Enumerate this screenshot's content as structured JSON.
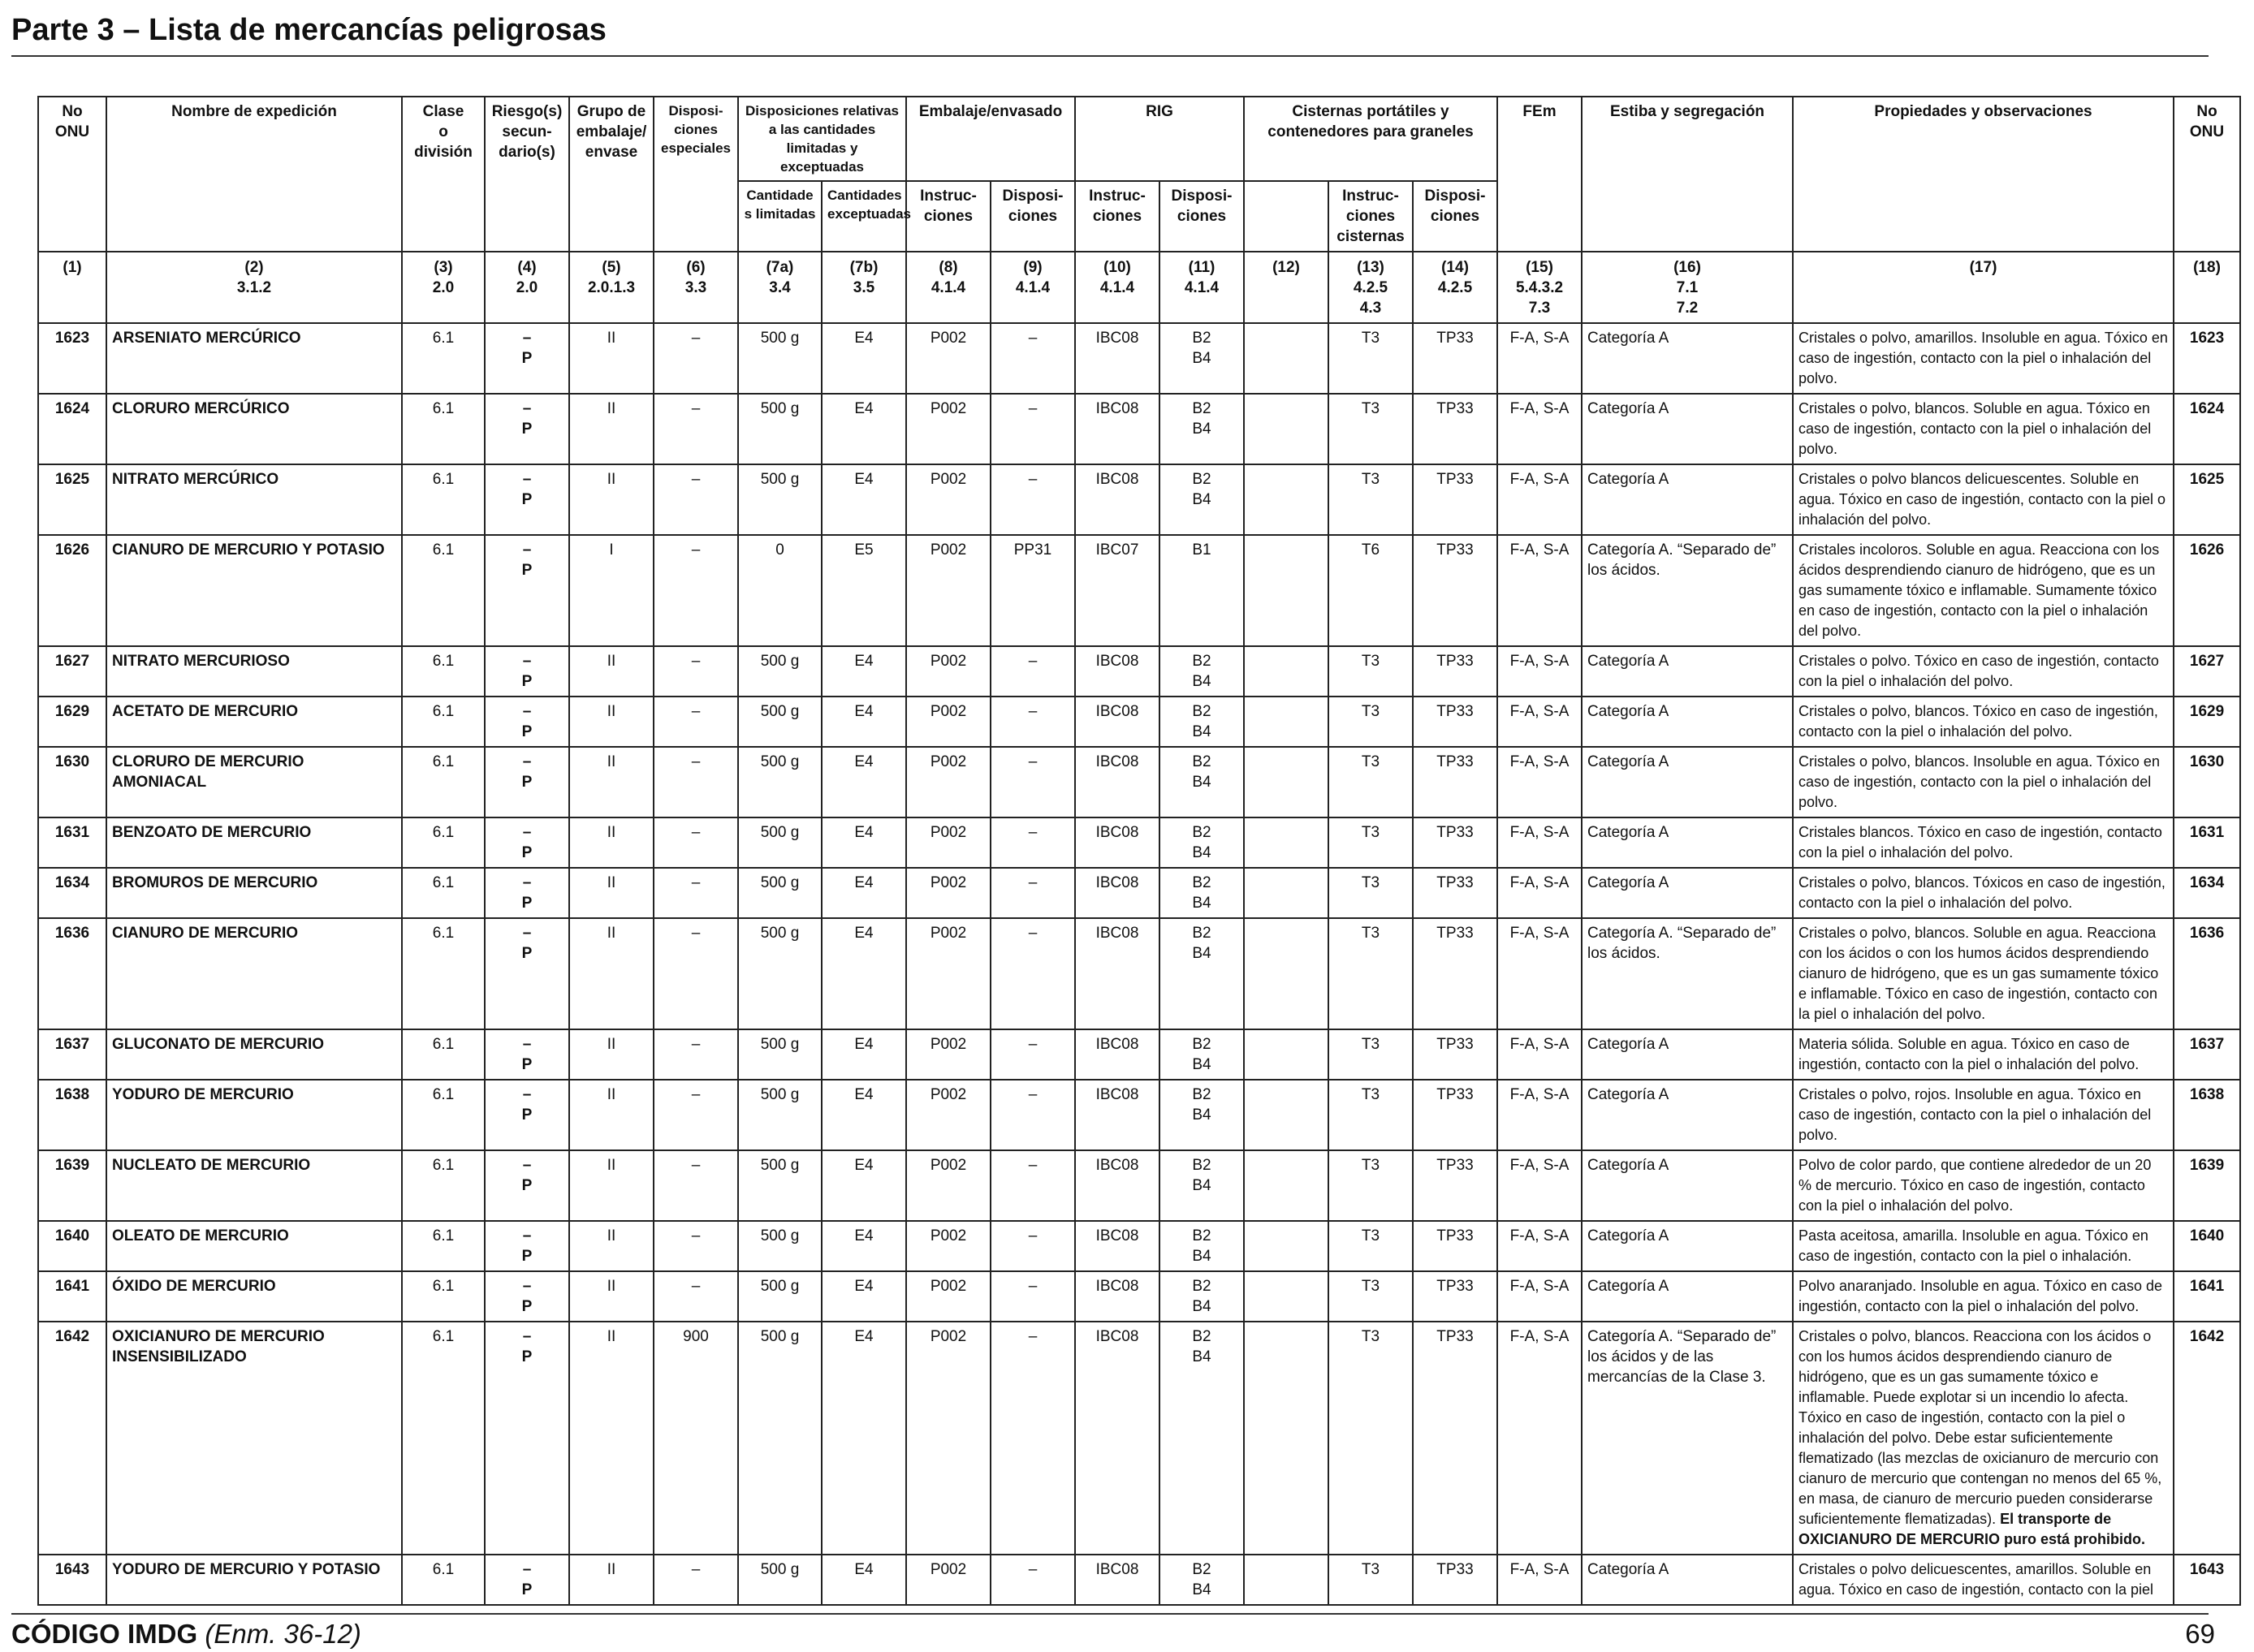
{
  "header": {
    "title": "Parte 3 – Lista de mercancías peligrosas"
  },
  "columns": {
    "c1": "No\nONU",
    "c2": "Nombre de expedición",
    "c3": "Clase\no\ndivisión",
    "c4": "Riesgo(s)\nsecun-\ndario(s)",
    "c5": "Grupo de\nembalaje/\nenvase",
    "c6": "Disposi-\nciones\nespeciales",
    "c7": "Disposiciones relativas\na las cantidades\nlimitadas y exceptuadas",
    "c7a": "Cantidade\ns limitadas",
    "c7b": "Cantidades\nexceptuadas",
    "c8_9": "Embalaje/envasado",
    "c8": "Instruc-\nciones",
    "c9": "Disposi-\nciones",
    "c10_11": "RIG",
    "c10": "Instruc-\nciones",
    "c11": "Disposi-\nciones",
    "c12_14": "Cisternas portátiles y\ncontenedores para graneles",
    "c13": "Instruc-\nciones\ncisternas",
    "c14": "Disposi-\nciones",
    "c15": "FEm",
    "c16": "Estiba y segregación",
    "c17": "Propiedades y observaciones",
    "c18": "No\nONU"
  },
  "column_numbers": [
    "(1)",
    "(2)\n3.1.2",
    "(3)\n2.0",
    "(4)\n2.0",
    "(5)\n2.0.1.3",
    "(6)\n3.3",
    "(7a)\n3.4",
    "(7b)\n3.5",
    "(8)\n4.1.4",
    "(9)\n4.1.4",
    "(10)\n4.1.4",
    "(11)\n4.1.4",
    "(12)",
    "(13)\n4.2.5\n4.3",
    "(14)\n4.2.5",
    "(15)\n5.4.3.2\n7.3",
    "(16)\n7.1\n7.2",
    "(17)",
    "(18)"
  ],
  "rows": [
    {
      "un": "1623",
      "name": "ARSENIATO MERCÚRICO",
      "cls": "6.1",
      "sub": "–\nP",
      "pg": "II",
      "sp": "–",
      "lq": "500 g",
      "eq": "E4",
      "pi": "P002",
      "pp": "–",
      "ibc": "IBC08",
      "ibcp": "B2\nB4",
      "c12": "",
      "tank": "T3",
      "tankp": "TP33",
      "ems": "F-A, S-A",
      "stow": "Categoría A",
      "props": "Cristales o polvo, amarillos. Insoluble en agua. Tóxico en caso de ingestión, contacto con la piel o inhalación del polvo.",
      "un2": "1623"
    },
    {
      "un": "1624",
      "name": "CLORURO MERCÚRICO",
      "cls": "6.1",
      "sub": "–\nP",
      "pg": "II",
      "sp": "–",
      "lq": "500 g",
      "eq": "E4",
      "pi": "P002",
      "pp": "–",
      "ibc": "IBC08",
      "ibcp": "B2\nB4",
      "c12": "",
      "tank": "T3",
      "tankp": "TP33",
      "ems": "F-A, S-A",
      "stow": "Categoría A",
      "props": "Cristales o polvo, blancos. Soluble en agua. Tóxico en caso de ingestión, contacto con la piel o inhalación del polvo.",
      "un2": "1624"
    },
    {
      "un": "1625",
      "name": "NITRATO MERCÚRICO",
      "cls": "6.1",
      "sub": "–\nP",
      "pg": "II",
      "sp": "–",
      "lq": "500 g",
      "eq": "E4",
      "pi": "P002",
      "pp": "–",
      "ibc": "IBC08",
      "ibcp": "B2\nB4",
      "c12": "",
      "tank": "T3",
      "tankp": "TP33",
      "ems": "F-A, S-A",
      "stow": "Categoría A",
      "props": "Cristales o polvo blancos delicuescentes. Soluble en agua. Tóxico en caso de ingestión, contacto con la piel o inhalación del polvo.",
      "un2": "1625"
    },
    {
      "un": "1626",
      "name": "CIANURO DE MERCURIO Y POTASIO",
      "cls": "6.1",
      "sub": "–\nP",
      "pg": "I",
      "sp": "–",
      "lq": "0",
      "eq": "E5",
      "pi": "P002",
      "pp": "PP31",
      "ibc": "IBC07",
      "ibcp": "B1",
      "c12": "",
      "tank": "T6",
      "tankp": "TP33",
      "ems": "F-A, S-A",
      "stow": "Categoría A. “Separado de” los ácidos.",
      "props": "Cristales incoloros. Soluble en agua. Reacciona con los ácidos desprendiendo cianuro de hidrógeno, que es un gas sumamente tóxico e inflamable. Sumamente tóxico en caso de ingestión, contacto con la piel o inhalación del polvo.",
      "un2": "1626"
    },
    {
      "un": "1627",
      "name": "NITRATO MERCURIOSO",
      "cls": "6.1",
      "sub": "–\nP",
      "pg": "II",
      "sp": "–",
      "lq": "500 g",
      "eq": "E4",
      "pi": "P002",
      "pp": "–",
      "ibc": "IBC08",
      "ibcp": "B2\nB4",
      "c12": "",
      "tank": "T3",
      "tankp": "TP33",
      "ems": "F-A, S-A",
      "stow": "Categoría A",
      "props": "Cristales o polvo. Tóxico en caso de ingestión, contacto con la piel o inhalación del polvo.",
      "un2": "1627"
    },
    {
      "un": "1629",
      "name": "ACETATO DE MERCURIO",
      "cls": "6.1",
      "sub": "–\nP",
      "pg": "II",
      "sp": "–",
      "lq": "500 g",
      "eq": "E4",
      "pi": "P002",
      "pp": "–",
      "ibc": "IBC08",
      "ibcp": "B2\nB4",
      "c12": "",
      "tank": "T3",
      "tankp": "TP33",
      "ems": "F-A, S-A",
      "stow": "Categoría A",
      "props": "Cristales o polvo, blancos. Tóxico en caso de ingestión, contacto con la piel o inhalación del polvo.",
      "un2": "1629"
    },
    {
      "un": "1630",
      "name": "CLORURO DE MERCURIO AMONIACAL",
      "cls": "6.1",
      "sub": "–\nP",
      "pg": "II",
      "sp": "–",
      "lq": "500 g",
      "eq": "E4",
      "pi": "P002",
      "pp": "–",
      "ibc": "IBC08",
      "ibcp": "B2\nB4",
      "c12": "",
      "tank": "T3",
      "tankp": "TP33",
      "ems": "F-A, S-A",
      "stow": "Categoría A",
      "props": "Cristales o polvo, blancos. Insoluble en agua. Tóxico en caso de ingestión, contacto con la piel o inhalación del polvo.",
      "un2": "1630"
    },
    {
      "un": "1631",
      "name": "BENZOATO DE MERCURIO",
      "cls": "6.1",
      "sub": "–\nP",
      "pg": "II",
      "sp": "–",
      "lq": "500 g",
      "eq": "E4",
      "pi": "P002",
      "pp": "–",
      "ibc": "IBC08",
      "ibcp": "B2\nB4",
      "c12": "",
      "tank": "T3",
      "tankp": "TP33",
      "ems": "F-A, S-A",
      "stow": "Categoría A",
      "props": "Cristales blancos. Tóxico en caso de ingestión, contacto con la piel o inhalación del polvo.",
      "un2": "1631"
    },
    {
      "un": "1634",
      "name": "BROMUROS DE MERCURIO",
      "cls": "6.1",
      "sub": "–\nP",
      "pg": "II",
      "sp": "–",
      "lq": "500 g",
      "eq": "E4",
      "pi": "P002",
      "pp": "–",
      "ibc": "IBC08",
      "ibcp": "B2\nB4",
      "c12": "",
      "tank": "T3",
      "tankp": "TP33",
      "ems": "F-A, S-A",
      "stow": "Categoría A",
      "props": "Cristales o polvo, blancos. Tóxicos en caso de ingestión, contacto con la piel o inhalación del polvo.",
      "un2": "1634"
    },
    {
      "un": "1636",
      "name": "CIANURO DE MERCURIO",
      "cls": "6.1",
      "sub": "–\nP",
      "pg": "II",
      "sp": "–",
      "lq": "500 g",
      "eq": "E4",
      "pi": "P002",
      "pp": "–",
      "ibc": "IBC08",
      "ibcp": "B2\nB4",
      "c12": "",
      "tank": "T3",
      "tankp": "TP33",
      "ems": "F-A, S-A",
      "stow": "Categoría A. “Separado de” los ácidos.",
      "props": "Cristales o polvo, blancos. Soluble en agua. Reacciona con los ácidos o con los humos ácidos desprendiendo cianuro de hidrógeno, que es un gas sumamente tóxico e inflamable. Tóxico en caso de ingestión, contacto con la piel o inhalación del polvo.",
      "un2": "1636"
    },
    {
      "un": "1637",
      "name": "GLUCONATO DE MERCURIO",
      "cls": "6.1",
      "sub": "–\nP",
      "pg": "II",
      "sp": "–",
      "lq": "500 g",
      "eq": "E4",
      "pi": "P002",
      "pp": "–",
      "ibc": "IBC08",
      "ibcp": "B2\nB4",
      "c12": "",
      "tank": "T3",
      "tankp": "TP33",
      "ems": "F-A, S-A",
      "stow": "Categoría A",
      "props": "Materia sólida. Soluble en agua. Tóxico en caso de ingestión, contacto con la piel o inhalación del polvo.",
      "un2": "1637"
    },
    {
      "un": "1638",
      "name": "YODURO DE MERCURIO",
      "cls": "6.1",
      "sub": "–\nP",
      "pg": "II",
      "sp": "–",
      "lq": "500 g",
      "eq": "E4",
      "pi": "P002",
      "pp": "–",
      "ibc": "IBC08",
      "ibcp": "B2\nB4",
      "c12": "",
      "tank": "T3",
      "tankp": "TP33",
      "ems": "F-A, S-A",
      "stow": "Categoría A",
      "props": "Cristales o polvo, rojos. Insoluble en agua. Tóxico en caso de ingestión, contacto con la piel o inhalación del polvo.",
      "un2": "1638"
    },
    {
      "un": "1639",
      "name": "NUCLEATO DE MERCURIO",
      "cls": "6.1",
      "sub": "–\nP",
      "pg": "II",
      "sp": "–",
      "lq": "500 g",
      "eq": "E4",
      "pi": "P002",
      "pp": "–",
      "ibc": "IBC08",
      "ibcp": "B2\nB4",
      "c12": "",
      "tank": "T3",
      "tankp": "TP33",
      "ems": "F-A, S-A",
      "stow": "Categoría A",
      "props": "Polvo de color pardo, que contiene alrededor de un 20 % de mercurio. Tóxico en caso de ingestión, contacto con la piel o inhalación del polvo.",
      "un2": "1639"
    },
    {
      "un": "1640",
      "name": "OLEATO DE MERCURIO",
      "cls": "6.1",
      "sub": "–\nP",
      "pg": "II",
      "sp": "–",
      "lq": "500 g",
      "eq": "E4",
      "pi": "P002",
      "pp": "–",
      "ibc": "IBC08",
      "ibcp": "B2\nB4",
      "c12": "",
      "tank": "T3",
      "tankp": "TP33",
      "ems": "F-A, S-A",
      "stow": "Categoría A",
      "props": "Pasta aceitosa, amarilla. Insoluble en agua. Tóxico en caso de ingestión, contacto con la piel o inhalación.",
      "un2": "1640"
    },
    {
      "un": "1641",
      "name": "ÓXIDO DE MERCURIO",
      "cls": "6.1",
      "sub": "–\nP",
      "pg": "II",
      "sp": "–",
      "lq": "500 g",
      "eq": "E4",
      "pi": "P002",
      "pp": "–",
      "ibc": "IBC08",
      "ibcp": "B2\nB4",
      "c12": "",
      "tank": "T3",
      "tankp": "TP33",
      "ems": "F-A, S-A",
      "stow": "Categoría A",
      "props": "Polvo anaranjado. Insoluble en agua. Tóxico en caso de ingestión, contacto con la piel o inhalación del polvo.",
      "un2": "1641"
    },
    {
      "un": "1642",
      "name": "OXICIANURO DE MERCURIO INSENSIBILIZADO",
      "cls": "6.1",
      "sub": "–\nP",
      "pg": "II",
      "sp": "900",
      "lq": "500 g",
      "eq": "E4",
      "pi": "P002",
      "pp": "–",
      "ibc": "IBC08",
      "ibcp": "B2\nB4",
      "c12": "",
      "tank": "T3",
      "tankp": "TP33",
      "ems": "F-A, S-A",
      "stow": "Categoría A. “Separado de” los ácidos y de las mercancías de la Clase 3.",
      "props": "Cristales o polvo, blancos. Reacciona con los ácidos o con los humos ácidos desprendiendo cianuro de hidrógeno, que es un gas sumamente tóxico e inflamable. Puede explotar si un incendio lo afecta. Tóxico en caso de ingestión, contacto con la piel o inhalación del polvo. Debe estar suficientemente flematizado (las mezclas de oxicianuro de mercurio con cianuro de mercurio que contengan no menos del 65 %, en masa, de cianuro de mercurio pueden considerarse suficientemente flematizadas).",
      "props_bold": " El transporte de OXICIANURO DE MERCURIO puro está prohibido.",
      "un2": "1642"
    },
    {
      "un": "1643",
      "name": "YODURO DE MERCURIO Y POTASIO",
      "cls": "6.1",
      "sub": "–\nP",
      "pg": "II",
      "sp": "–",
      "lq": "500 g",
      "eq": "E4",
      "pi": "P002",
      "pp": "–",
      "ibc": "IBC08",
      "ibcp": "B2\nB4",
      "c12": "",
      "tank": "T3",
      "tankp": "TP33",
      "ems": "F-A, S-A",
      "stow": "Categoría A",
      "props": "Cristales o polvo delicuescentes, amarillos. Soluble en agua. Tóxico en caso de ingestión, contacto con la piel",
      "un2": "1643"
    }
  ],
  "footer": {
    "code": "CÓDIGO IMDG",
    "amendment": "(Enm. 36-12)",
    "page": "69"
  }
}
